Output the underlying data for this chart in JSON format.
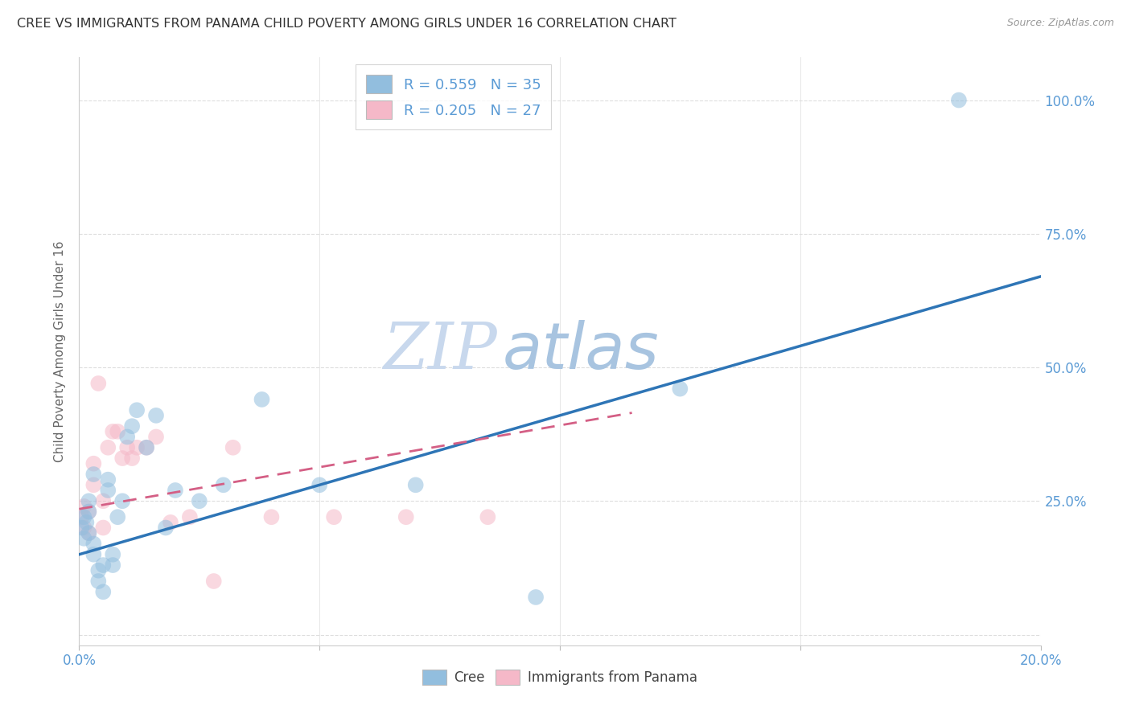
{
  "title": "CREE VS IMMIGRANTS FROM PANAMA CHILD POVERTY AMONG GIRLS UNDER 16 CORRELATION CHART",
  "source": "Source: ZipAtlas.com",
  "ylabel": "Child Poverty Among Girls Under 16",
  "watermark_zip": "ZIP",
  "watermark_atlas": "atlas",
  "xlim": [
    0.0,
    0.2
  ],
  "ylim": [
    -0.02,
    1.08
  ],
  "xtick_positions": [
    0.0,
    0.05,
    0.1,
    0.15,
    0.2
  ],
  "xticklabels": [
    "0.0%",
    "",
    "",
    "",
    "20.0%"
  ],
  "ytick_positions": [
    0.0,
    0.25,
    0.5,
    0.75,
    1.0
  ],
  "yticklabels_right": [
    "",
    "25.0%",
    "50.0%",
    "75.0%",
    "100.0%"
  ],
  "cree_color": "#92bede",
  "panama_color": "#f5b8c8",
  "cree_R": 0.559,
  "cree_N": 35,
  "panama_R": 0.205,
  "panama_N": 27,
  "cree_line_x0": 0.0,
  "cree_line_y0": 0.15,
  "cree_line_x1": 0.2,
  "cree_line_y1": 0.67,
  "panama_line_x0": 0.0,
  "panama_line_y0": 0.235,
  "panama_line_x1": 0.115,
  "panama_line_y1": 0.415,
  "cree_scatter_x": [
    0.0005,
    0.001,
    0.001,
    0.0015,
    0.002,
    0.002,
    0.002,
    0.003,
    0.003,
    0.003,
    0.004,
    0.004,
    0.005,
    0.005,
    0.006,
    0.006,
    0.007,
    0.007,
    0.008,
    0.009,
    0.01,
    0.011,
    0.012,
    0.014,
    0.016,
    0.018,
    0.02,
    0.025,
    0.03,
    0.038,
    0.05,
    0.07,
    0.095,
    0.125,
    0.183
  ],
  "cree_scatter_y": [
    0.2,
    0.22,
    0.18,
    0.21,
    0.19,
    0.25,
    0.23,
    0.3,
    0.17,
    0.15,
    0.1,
    0.12,
    0.08,
    0.13,
    0.29,
    0.27,
    0.15,
    0.13,
    0.22,
    0.25,
    0.37,
    0.39,
    0.42,
    0.35,
    0.41,
    0.2,
    0.27,
    0.25,
    0.28,
    0.44,
    0.28,
    0.28,
    0.07,
    0.46,
    1.0
  ],
  "panama_scatter_x": [
    0.0005,
    0.001,
    0.001,
    0.002,
    0.002,
    0.003,
    0.003,
    0.004,
    0.005,
    0.005,
    0.006,
    0.007,
    0.008,
    0.009,
    0.01,
    0.011,
    0.012,
    0.014,
    0.016,
    0.019,
    0.023,
    0.028,
    0.032,
    0.04,
    0.053,
    0.068,
    0.085
  ],
  "panama_scatter_y": [
    0.22,
    0.2,
    0.24,
    0.19,
    0.23,
    0.32,
    0.28,
    0.47,
    0.2,
    0.25,
    0.35,
    0.38,
    0.38,
    0.33,
    0.35,
    0.33,
    0.35,
    0.35,
    0.37,
    0.21,
    0.22,
    0.1,
    0.35,
    0.22,
    0.22,
    0.22,
    0.22
  ],
  "grid_color": "#dddddd",
  "bg_color": "#ffffff",
  "title_color": "#333333",
  "ylabel_color": "#666666",
  "tick_color_blue": "#5b9bd5",
  "legend_label_color": "#5b9bd5",
  "bottom_legend_color": "#444444",
  "cree_line_color": "#2e75b6",
  "panama_line_color": "#d45f85"
}
